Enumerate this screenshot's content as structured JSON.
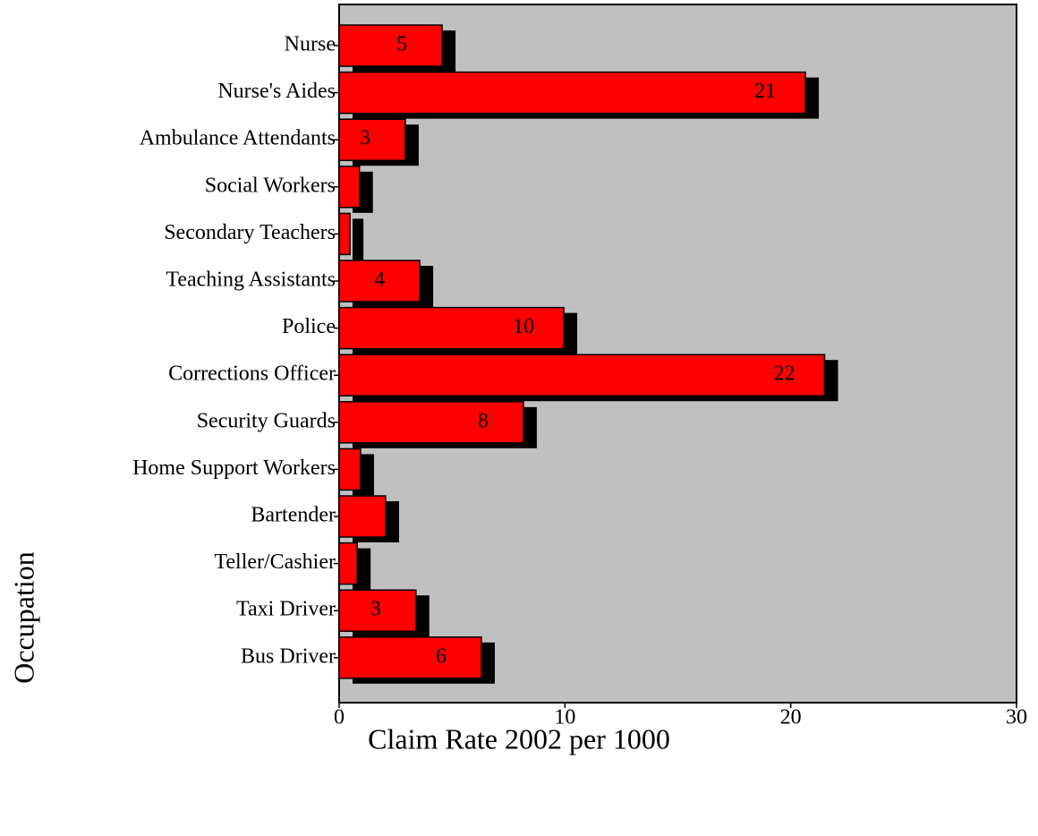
{
  "chart_data": {
    "type": "barh",
    "x_label": "Claim Rate 2002 per 1000",
    "y_label": "Occupation",
    "categories": [
      "Nurse",
      "Nurse's Aides",
      "Ambulance Attendants",
      "Social Workers",
      "Secondary Teachers",
      "Teaching Assistants",
      "Police",
      "Corrections Officer",
      "Security Guards",
      "Home Support Workers",
      "Bartender",
      "Teller/Cashier",
      "Taxi Driver",
      "Bus Driver"
    ],
    "values": [
      4.56,
      20.65,
      2.93,
      0.9,
      0.48,
      3.57,
      9.95,
      21.5,
      8.16,
      0.95,
      2.06,
      0.8,
      3.4,
      6.3
    ],
    "value_labels": [
      "5",
      "21",
      "3",
      null,
      null,
      "4",
      "10",
      "22",
      "8",
      null,
      null,
      null,
      "3",
      "6"
    ],
    "color": "#ff0000",
    "shadow_color": "#000000",
    "background": "#c0c0c0",
    "xlim": [
      0,
      30
    ],
    "xticks": [
      0,
      10,
      20,
      30
    ]
  }
}
